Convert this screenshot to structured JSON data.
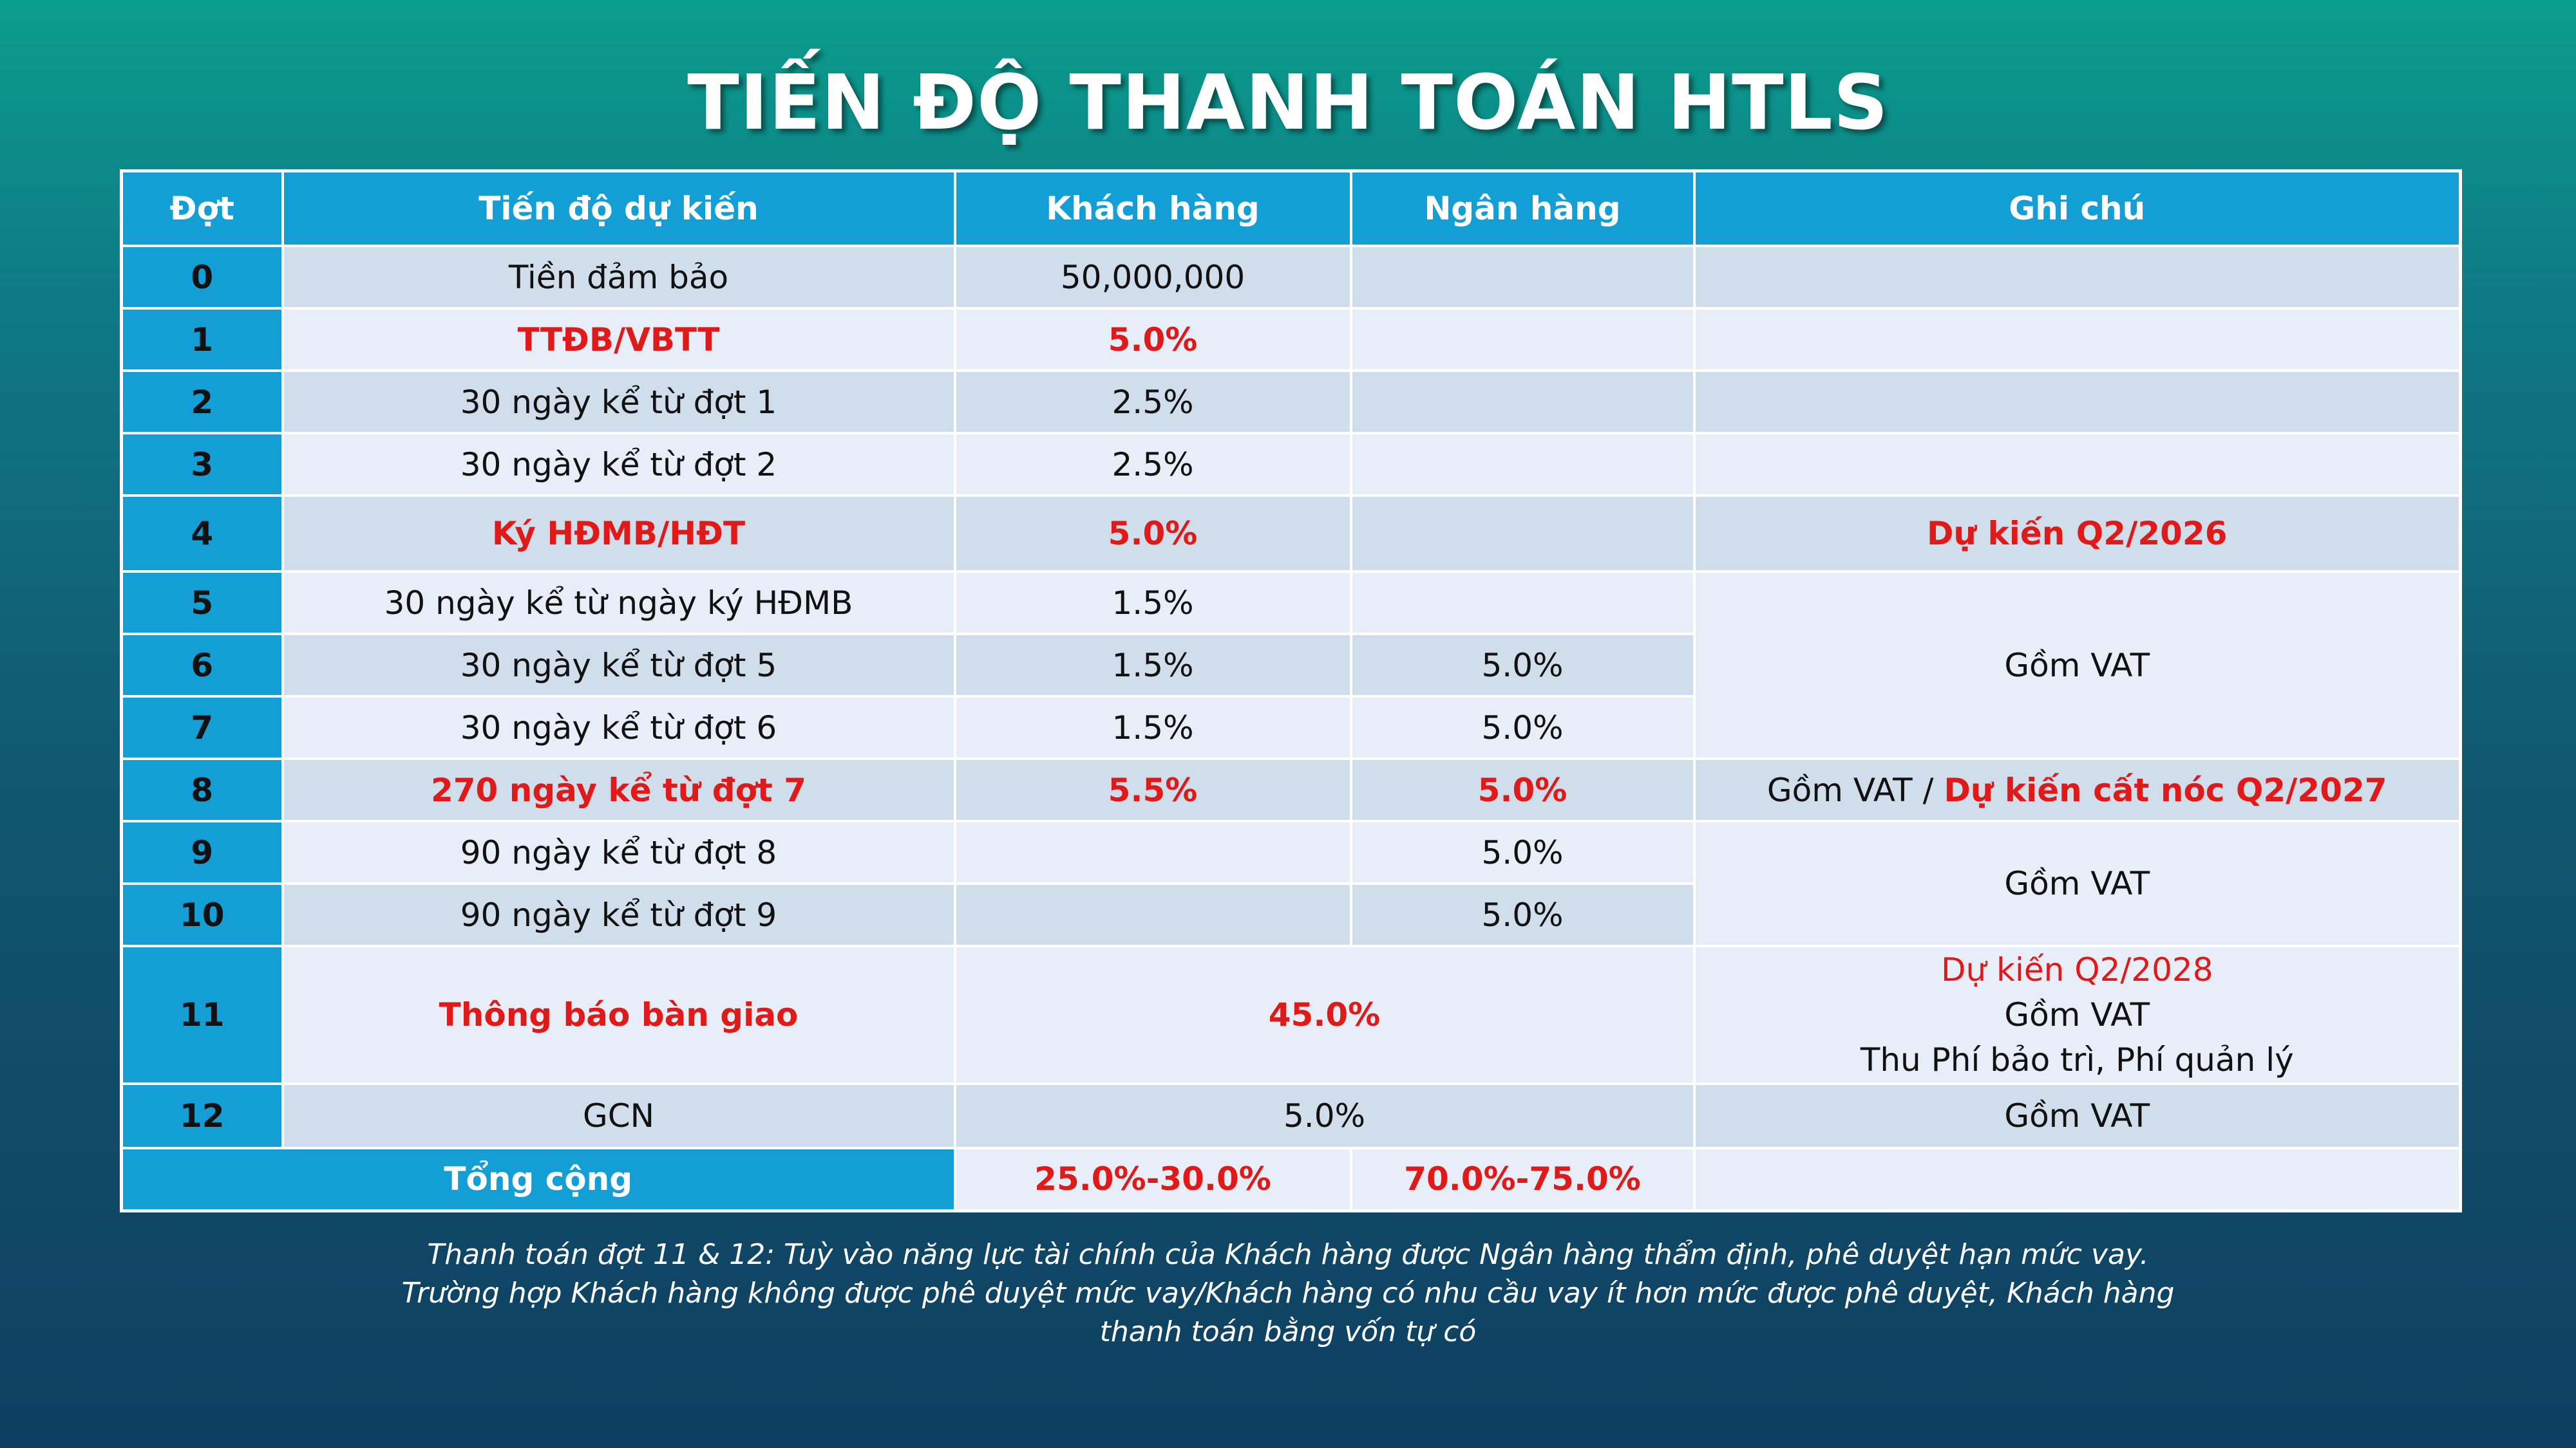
{
  "title": "TIẾN ĐỘ THANH TOÁN HTLS",
  "headers": {
    "dot": "Đợt",
    "tien_do": "Tiến độ dự kiến",
    "khach_hang": "Khách hàng",
    "ngan_hang": "Ngân hàng",
    "ghi_chu": "Ghi chú"
  },
  "rows": [
    {
      "dot": "0",
      "tien_do": "Tiền đảm bảo",
      "khach_hang": "50,000,000",
      "ngan_hang": "",
      "ghi_chu": ""
    },
    {
      "dot": "1",
      "tien_do": "TTĐB/VBTT",
      "khach_hang": "5.0%",
      "ngan_hang": "",
      "ghi_chu": ""
    },
    {
      "dot": "2",
      "tien_do": "30 ngày kể từ đợt 1",
      "khach_hang": "2.5%",
      "ngan_hang": "",
      "ghi_chu": ""
    },
    {
      "dot": "3",
      "tien_do": "30 ngày kể từ đợt 2",
      "khach_hang": "2.5%",
      "ngan_hang": "",
      "ghi_chu": ""
    },
    {
      "dot": "4",
      "tien_do": "Ký HĐMB/HĐT",
      "khach_hang": "5.0%",
      "ngan_hang": "",
      "ghi_chu": "Dự kiến Q2/2026"
    },
    {
      "dot": "5",
      "tien_do": "30 ngày kể từ ngày ký HĐMB",
      "khach_hang": "1.5%",
      "ngan_hang": ""
    },
    {
      "dot": "6",
      "tien_do": "30 ngày kể từ đợt 5",
      "khach_hang": "1.5%",
      "ngan_hang": "5.0%"
    },
    {
      "dot": "7",
      "tien_do": "30 ngày kể từ đợt 6",
      "khach_hang": "1.5%",
      "ngan_hang": "5.0%"
    },
    {
      "dot": "8",
      "tien_do": "270 ngày kể từ đợt 7",
      "khach_hang": "5.5%",
      "ngan_hang": "5.0%",
      "ghi_chu_a": "Gồm VAT / ",
      "ghi_chu_b": "Dự kiến cất nóc Q2/2027"
    },
    {
      "dot": "9",
      "tien_do": "90 ngày kể từ đợt 8",
      "khach_hang": "",
      "ngan_hang": "5.0%"
    },
    {
      "dot": "10",
      "tien_do": "90 ngày kể từ đợt 9",
      "khach_hang": "",
      "ngan_hang": "5.0%"
    },
    {
      "dot": "11",
      "tien_do": "Thông báo bàn giao",
      "combined": "45.0%",
      "ghi_chu_1": "Dự kiến Q2/2028",
      "ghi_chu_2": "Gồm VAT",
      "ghi_chu_3": "Thu Phí bảo trì, Phí quản lý"
    },
    {
      "dot": "12",
      "tien_do": "GCN",
      "combined": "5.0%",
      "ghi_chu": "Gồm VAT"
    }
  ],
  "merged_notes": {
    "rows_5_7": "Gồm VAT",
    "rows_9_10": "Gồm VAT"
  },
  "total": {
    "label": "Tổng cộng",
    "khach_hang": "25.0%-30.0%",
    "ngan_hang": "70.0%-75.0%",
    "ghi_chu": ""
  },
  "footnote": {
    "line1": "Thanh toán đợt 11 & 12: Tuỳ vào năng lực tài chính của Khách hàng được Ngân hàng thẩm định, phê duyệt hạn mức vay.",
    "line2": "Trường hợp Khách hàng không được phê duyệt mức vay/Khách hàng có nhu cầu vay ít hơn mức được phê duyệt, Khách hàng",
    "line3": "thanh toán bằng vốn tự có"
  },
  "colors": {
    "header_blue": "#139fd6",
    "row_light": "#e8eef7",
    "row_dark": "#cfdeea",
    "highlight_red": "#e01919"
  }
}
